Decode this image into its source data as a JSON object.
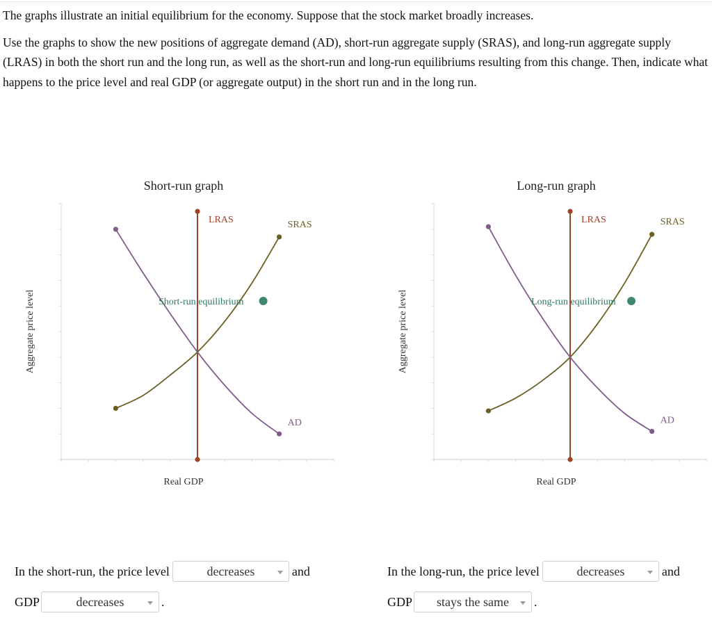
{
  "intro": {
    "p1": "The graphs illustrate an initial equilibrium for the economy. Suppose that the stock market broadly increases.",
    "p2": "Use the graphs to show the new positions of aggregate demand (AD), short-run aggregate supply (SRAS), and long-run aggregate supply (LRAS) in both the short run and the long run, as well as the short-run and long-run equilibriums resulting from this change. Then, indicate what happens to the price level and real GDP (or aggregate output) in the short run and in the long run."
  },
  "colors": {
    "lras": "#a0412a",
    "sras": "#6b5f24",
    "ad": "#7e5d8c",
    "equilibrium": "#3f8a6c",
    "axis": "#999999"
  },
  "chart_data": [
    {
      "type": "line",
      "title": "Short-run graph",
      "xlabel": "Real GDP",
      "ylabel": "Aggregate price level",
      "xlim": [
        0,
        10
      ],
      "ylim": [
        0,
        10
      ],
      "series": [
        {
          "name": "LRAS",
          "points": [
            [
              5,
              9.7
            ],
            [
              5,
              0
            ]
          ]
        },
        {
          "name": "SRAS",
          "points": [
            [
              2,
              2
            ],
            [
              3,
              2.5
            ],
            [
              4,
              3.3
            ],
            [
              5,
              4.2
            ],
            [
              6,
              5.4
            ],
            [
              7,
              6.9
            ],
            [
              8,
              8.7
            ]
          ]
        },
        {
          "name": "AD",
          "points": [
            [
              2,
              9
            ],
            [
              3,
              7.3
            ],
            [
              4,
              5.7
            ],
            [
              5,
              4.2
            ],
            [
              6,
              2.9
            ],
            [
              7,
              1.8
            ],
            [
              8,
              1
            ]
          ]
        }
      ],
      "equilibrium_label": "Short-run equilibrium",
      "legend_marker_label": "Short-run equilibrium"
    },
    {
      "type": "line",
      "title": "Long-run graph",
      "xlabel": "Real GDP",
      "ylabel": "Aggregate price level",
      "xlim": [
        0,
        10
      ],
      "ylim": [
        0,
        10
      ],
      "series": [
        {
          "name": "LRAS",
          "points": [
            [
              5,
              9.7
            ],
            [
              5,
              0
            ]
          ]
        },
        {
          "name": "SRAS",
          "points": [
            [
              2,
              1.9
            ],
            [
              3,
              2.4
            ],
            [
              4,
              3.1
            ],
            [
              5,
              4.0
            ],
            [
              6,
              5.3
            ],
            [
              7,
              6.9
            ],
            [
              8,
              8.8
            ]
          ]
        },
        {
          "name": "AD",
          "points": [
            [
              2,
              9.1
            ],
            [
              3,
              7.2
            ],
            [
              4,
              5.5
            ],
            [
              5,
              4.0
            ],
            [
              6,
              2.8
            ],
            [
              7,
              1.8
            ],
            [
              8,
              1.1
            ]
          ]
        }
      ],
      "equilibrium_label": "Long-run equilibrium",
      "legend_marker_label": "Long-run equilibrium"
    }
  ],
  "answers": {
    "short": {
      "lead": "In the short-run, the price level",
      "price_value": "decreases",
      "and": "and",
      "gdp": "GDP",
      "gdp_value": "decreases",
      "period": "."
    },
    "long": {
      "lead": "In the long-run, the price level",
      "price_value": "decreases",
      "and": "and",
      "gdp": "GDP",
      "gdp_value": "stays the same",
      "period": "."
    }
  }
}
